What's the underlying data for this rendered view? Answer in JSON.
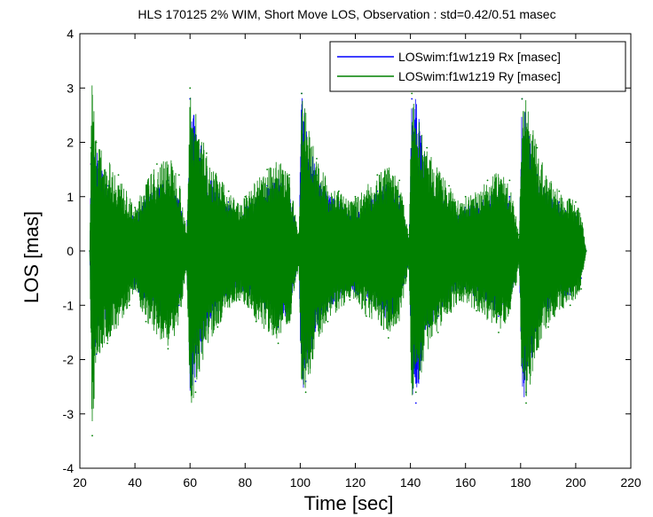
{
  "chart_data": {
    "type": "line",
    "title": "HLS 170125 2% WIM, Short Move LOS, Observation : std=0.42/0.51 masec",
    "xlabel": "Time [sec]",
    "ylabel": "LOS [mas]",
    "xlim": [
      20,
      220
    ],
    "ylim": [
      -4,
      4
    ],
    "xticks": [
      20,
      40,
      60,
      80,
      100,
      120,
      140,
      160,
      180,
      200,
      220
    ],
    "yticks": [
      -4,
      -3,
      -2,
      -1,
      0,
      1,
      2,
      3,
      4
    ],
    "grid": false,
    "legend_position": "top-right",
    "series": [
      {
        "name": "LOSwim:f1w1z19 Rx [masec]",
        "color": "#0000ff",
        "x": [
          23.6,
          24.0,
          26.0,
          30.0,
          34.0,
          38.0,
          40.0,
          44.0,
          48.0,
          52.0,
          56.0,
          58.8,
          60.0,
          62.0,
          66.0,
          70.0,
          74.0,
          78.0,
          80.0,
          84.0,
          88.0,
          92.0,
          96.0,
          99.5,
          100.5,
          102.0,
          106.0,
          110.0,
          114.0,
          118.0,
          120.0,
          124.0,
          128.0,
          132.0,
          136.0,
          139.5,
          140.5,
          142.0,
          146.0,
          150.0,
          154.0,
          158.0,
          160.0,
          164.0,
          168.0,
          172.0,
          176.0,
          179.5,
          180.5,
          182.0,
          186.0,
          190.0,
          194.0,
          198.0,
          200.0,
          202.0,
          203.8
        ],
        "y": [
          0.0,
          1.6,
          -1.9,
          1.2,
          -0.8,
          0.6,
          -0.7,
          1.0,
          -1.2,
          1.3,
          -1.0,
          0.3,
          2.8,
          -2.4,
          1.5,
          -1.1,
          0.9,
          -0.7,
          0.8,
          -1.0,
          1.2,
          -1.4,
          1.1,
          0.2,
          2.9,
          -2.4,
          1.4,
          -1.1,
          0.9,
          -0.7,
          0.8,
          -0.9,
          1.1,
          -1.3,
          1.0,
          0.2,
          2.8,
          -2.8,
          1.5,
          -1.2,
          0.9,
          -0.7,
          0.8,
          -0.9,
          1.0,
          -1.2,
          1.0,
          0.2,
          2.8,
          -2.6,
          1.4,
          -1.1,
          0.9,
          -0.8,
          0.7,
          -0.5,
          0.0
        ]
      },
      {
        "name": "LOSwim:f1w1z19 Ry [masec]",
        "color": "#008000",
        "x": [
          23.6,
          24.0,
          24.5,
          26.0,
          30.0,
          34.0,
          38.0,
          40.0,
          44.0,
          48.0,
          52.0,
          56.0,
          58.8,
          60.0,
          62.0,
          66.0,
          70.0,
          74.0,
          78.0,
          80.0,
          84.0,
          88.0,
          92.0,
          96.0,
          99.5,
          100.5,
          102.0,
          106.0,
          110.0,
          114.0,
          118.0,
          120.0,
          124.0,
          128.0,
          132.0,
          136.0,
          139.5,
          140.5,
          142.0,
          146.0,
          150.0,
          154.0,
          158.0,
          160.0,
          164.0,
          168.0,
          172.0,
          176.0,
          179.5,
          180.5,
          182.0,
          186.0,
          190.0,
          194.0,
          198.0,
          200.0,
          202.0,
          203.8
        ],
        "y": [
          0.0,
          1.9,
          -3.4,
          2.0,
          -1.7,
          1.4,
          -1.0,
          0.8,
          -1.3,
          1.6,
          -1.8,
          1.4,
          0.3,
          3.0,
          -2.6,
          1.8,
          -1.4,
          1.1,
          -0.9,
          1.0,
          -1.3,
          1.5,
          -1.7,
          1.4,
          0.3,
          2.9,
          -2.6,
          1.7,
          -1.3,
          1.1,
          -0.9,
          1.0,
          -1.2,
          1.4,
          -1.6,
          1.3,
          0.3,
          2.9,
          -2.6,
          1.9,
          -1.5,
          1.2,
          -0.9,
          1.0,
          -1.1,
          1.3,
          -1.5,
          1.3,
          0.3,
          2.8,
          -2.8,
          1.9,
          -1.4,
          1.1,
          -1.0,
          0.9,
          -0.7,
          0.0
        ]
      }
    ]
  }
}
